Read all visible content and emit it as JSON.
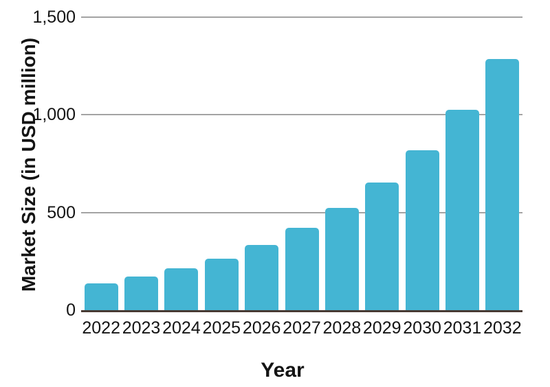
{
  "chart_data": {
    "type": "bar",
    "title": "",
    "xlabel": "Year",
    "ylabel": "Market Size (in USD million)",
    "categories": [
      "2022",
      "2023",
      "2024",
      "2025",
      "2026",
      "2027",
      "2028",
      "2029",
      "2030",
      "2031",
      "2032"
    ],
    "values": [
      138,
      172,
      215,
      265,
      335,
      420,
      525,
      655,
      820,
      1025,
      1285
    ],
    "ylim": [
      0,
      1500
    ],
    "yticks": [
      {
        "value": 0,
        "label": "0"
      },
      {
        "value": 500,
        "label": "500"
      },
      {
        "value": 1000,
        "label": "1,000"
      },
      {
        "value": 1500,
        "label": "1,500"
      }
    ],
    "grid": true,
    "legend": "none",
    "colors": {
      "bar": "#44b5d3",
      "gridline": "#a3a3a3",
      "axis_line": "#473a33",
      "text": "#141414",
      "background": "#ffffff"
    }
  }
}
